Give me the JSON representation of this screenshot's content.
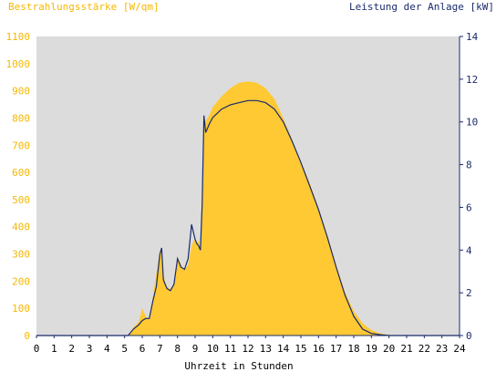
{
  "chart_data": {
    "type": "area",
    "left_axis_label": "Bestrahlungsstärke [W/qm]",
    "right_axis_label": "Leistung der Anlage [kW]",
    "xlabel": "Uhrzeit in Stunden",
    "xlim": [
      0,
      24
    ],
    "ylim_left": [
      0,
      1100
    ],
    "ylim_right": [
      0,
      14
    ],
    "x_ticks": [
      0,
      1,
      2,
      3,
      4,
      5,
      6,
      7,
      8,
      9,
      10,
      11,
      12,
      13,
      14,
      15,
      16,
      17,
      18,
      19,
      20,
      21,
      22,
      23,
      24
    ],
    "y_left_ticks": [
      0,
      100,
      200,
      300,
      400,
      500,
      600,
      700,
      800,
      900,
      1000,
      1100
    ],
    "y_right_ticks": [
      0,
      2,
      4,
      6,
      8,
      10,
      12,
      14
    ],
    "grid": false,
    "colors": {
      "plot_bg": "#dcdcdc",
      "irradiance_fill": "#ffc933",
      "power_line": "#1a2a6c",
      "left_axis_text": "#f5b800",
      "right_axis_text": "#1a2a6c"
    },
    "series": [
      {
        "axis": "left",
        "style": "area",
        "x": [
          0,
          5.2,
          5.5,
          5.8,
          6.0,
          6.2,
          6.4,
          6.6,
          6.8,
          7.0,
          7.1,
          7.2,
          7.4,
          7.6,
          7.8,
          8.0,
          8.2,
          8.4,
          8.6,
          8.8,
          9.0,
          9.1,
          9.2,
          9.3,
          9.4,
          9.5,
          9.6,
          9.8,
          10.0,
          10.5,
          11.0,
          11.5,
          12.0,
          12.5,
          13.0,
          13.5,
          14.0,
          14.5,
          15.0,
          15.5,
          16.0,
          16.5,
          17.0,
          17.5,
          18.0,
          18.5,
          19.0,
          19.5,
          20.0,
          20.2,
          24
        ],
        "values": [
          0,
          0,
          30,
          50,
          100,
          70,
          60,
          140,
          230,
          310,
          320,
          220,
          180,
          170,
          190,
          290,
          260,
          240,
          260,
          330,
          360,
          340,
          350,
          310,
          480,
          770,
          790,
          810,
          840,
          880,
          910,
          930,
          935,
          930,
          910,
          870,
          800,
          720,
          640,
          560,
          470,
          370,
          260,
          160,
          90,
          45,
          20,
          8,
          2,
          0,
          0
        ]
      },
      {
        "axis": "right",
        "style": "line",
        "x": [
          0,
          5.2,
          5.5,
          5.8,
          6.0,
          6.2,
          6.4,
          6.6,
          6.8,
          7.0,
          7.1,
          7.2,
          7.4,
          7.6,
          7.8,
          8.0,
          8.2,
          8.4,
          8.6,
          8.8,
          9.0,
          9.1,
          9.2,
          9.3,
          9.4,
          9.5,
          9.6,
          9.8,
          10.0,
          10.5,
          11.0,
          11.5,
          12.0,
          12.5,
          13.0,
          13.5,
          14.0,
          14.5,
          15.0,
          15.5,
          16.0,
          16.5,
          17.0,
          17.5,
          18.0,
          18.5,
          19.0,
          19.5,
          20.0,
          20.2,
          24
        ],
        "values": [
          0,
          0,
          0.3,
          0.5,
          0.7,
          0.8,
          0.8,
          1.6,
          2.3,
          3.8,
          4.1,
          2.6,
          2.2,
          2.1,
          2.4,
          3.6,
          3.2,
          3.1,
          3.6,
          5.2,
          4.5,
          4.3,
          4.2,
          4.0,
          6.1,
          10.3,
          9.5,
          9.9,
          10.2,
          10.6,
          10.8,
          10.9,
          11.0,
          11.0,
          10.9,
          10.6,
          10.0,
          9.1,
          8.1,
          7.0,
          5.9,
          4.6,
          3.2,
          1.9,
          0.9,
          0.3,
          0.1,
          0.04,
          0,
          0,
          0
        ]
      }
    ]
  }
}
